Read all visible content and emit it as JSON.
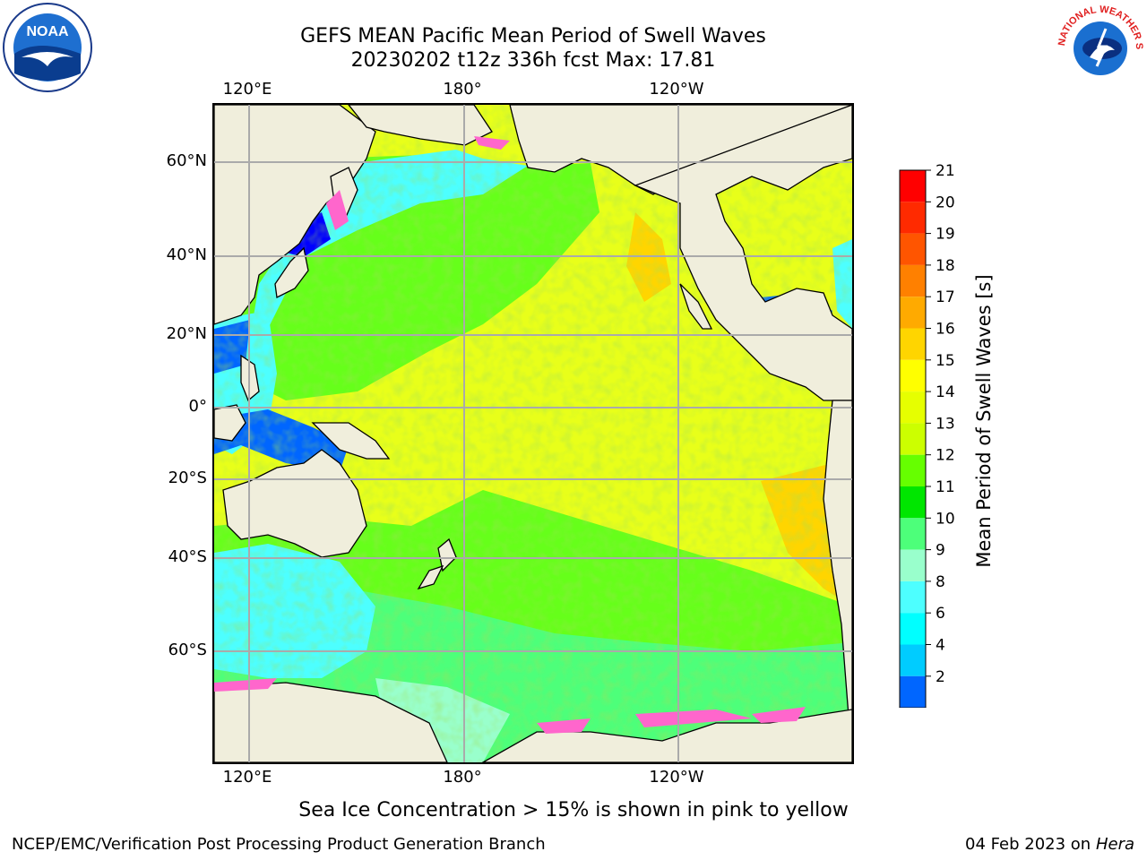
{
  "header": {
    "title_line1": "GEFS MEAN Pacific Mean Period of Swell Waves",
    "title_line2": "20230202 t12z 336h fcst   Max: 17.81"
  },
  "axes": {
    "lon_labels": [
      "120°E",
      "180°",
      "120°W"
    ],
    "lat_labels": [
      "60°N",
      "40°N",
      "20°N",
      "0°",
      "20°S",
      "40°S",
      "60°S"
    ]
  },
  "colorbar": {
    "label": "Mean Period of Swell Waves [s]",
    "ticks": [
      "21",
      "20",
      "19",
      "18",
      "17",
      "16",
      "15",
      "14",
      "13",
      "12",
      "11",
      "10",
      "9",
      "8",
      "6",
      "4",
      "2"
    ],
    "colors": [
      "#ff0000",
      "#ff2a00",
      "#ff5500",
      "#ff8000",
      "#ffaa00",
      "#ffd500",
      "#ffff00",
      "#e6ff00",
      "#ccff00",
      "#66ff00",
      "#00e600",
      "#4dff7a",
      "#99ffcc",
      "#4dffff",
      "#00ffff",
      "#00ccff",
      "#0066ff"
    ],
    "extend_color": "#0000ff"
  },
  "map": {
    "ocean_colors": {
      "yellow": "#e8ff1a",
      "yellow_green": "#ccff00",
      "orange": "#ffd500",
      "green": "#66ff1a",
      "light_green": "#4dff7a",
      "cyan": "#4dffff",
      "blue": "#0066ff",
      "dark_blue": "#0000ff",
      "land": "#f0eedc",
      "ice_pink": "#ff66cc"
    }
  },
  "footer": {
    "note": "Sea Ice Concentration > 15% is shown in pink to yellow",
    "credit_left": "NCEP/EMC/Verification Post Processing Product Generation Branch",
    "credit_date": "04 Feb 2023 on",
    "credit_system": "Hera"
  },
  "logos": {
    "noaa_text": "NOAA",
    "nws_text": "NATIONAL WEATHER SERVICE"
  }
}
